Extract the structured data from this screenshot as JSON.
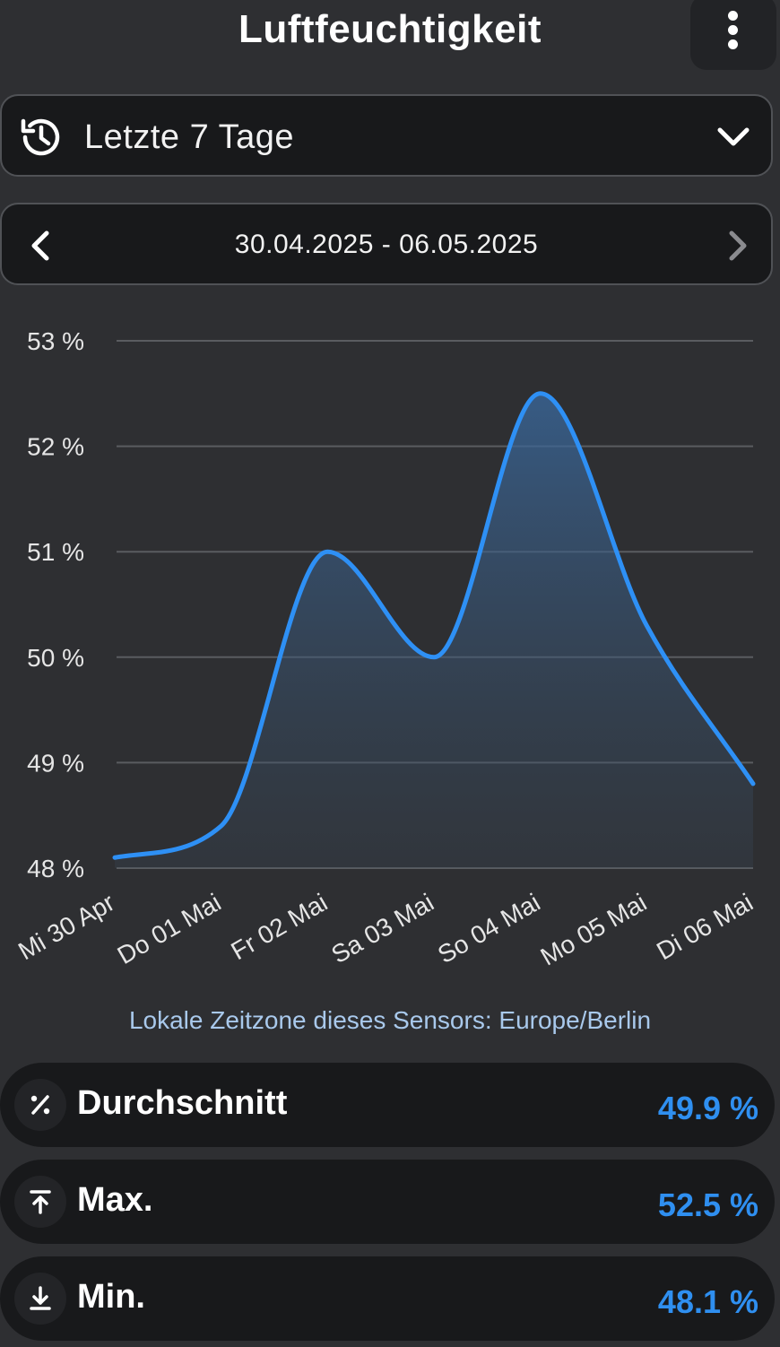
{
  "header": {
    "title": "Luftfeuchtigkeit",
    "menu_icon": "more-vertical-icon"
  },
  "range_select": {
    "icon": "history-icon",
    "label": "Letzte 7 Tage",
    "chevron_icon": "chevron-down-icon"
  },
  "date_nav": {
    "prev_icon": "chevron-left-icon",
    "range": "30.04.2025 - 06.05.2025",
    "next_icon": "chevron-right-icon"
  },
  "chart_data": {
    "type": "area",
    "categories": [
      "Mi 30 Apr",
      "Do 01 Mai",
      "Fr 02 Mai",
      "Sa 03 Mai",
      "So 04 Mai",
      "Mo 05 Mai",
      "Di 06 Mai"
    ],
    "values": [
      48.1,
      48.4,
      51.0,
      50.0,
      52.5,
      50.3,
      48.8
    ],
    "ylim": [
      48,
      53
    ],
    "yticks": [
      48,
      49,
      50,
      51,
      52,
      53
    ],
    "ytick_labels": [
      "48 %",
      "49 %",
      "50 %",
      "51 %",
      "52 %",
      "53 %"
    ],
    "grid": true,
    "line_color": "#2e90f5",
    "fill_color": "#3a6aa0"
  },
  "timezone_note": "Lokale Zeitzone dieses Sensors: Europe/Berlin",
  "stats": [
    {
      "icon": "percent-icon",
      "label": "Durchschnitt",
      "value": "49.9 %"
    },
    {
      "icon": "arrow-up-to-line-icon",
      "label": "Max.",
      "value": "52.5 %"
    },
    {
      "icon": "arrow-down-to-line-icon",
      "label": "Min.",
      "value": "48.1 %"
    }
  ],
  "colors": {
    "accent": "#2f8ff0",
    "background": "#2e2f32",
    "card": "#18191b"
  }
}
